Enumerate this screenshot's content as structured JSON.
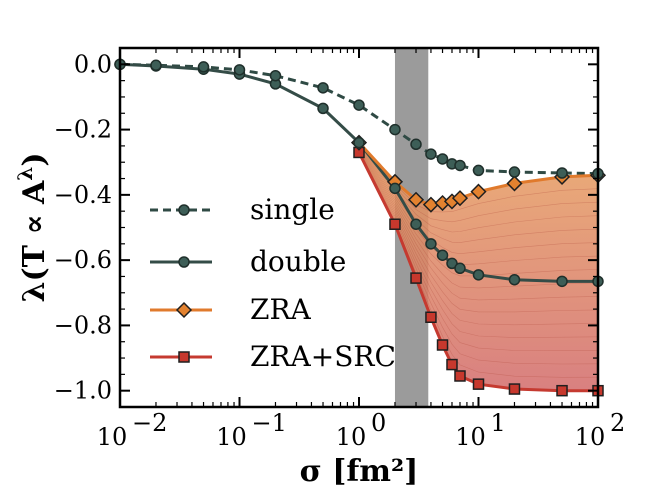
{
  "chart_data": {
    "type": "line",
    "xlabel": "σ [fm²]",
    "ylabel": "λ(T ∝ A^λ)",
    "x_scale": "log",
    "xlim": [
      0.01,
      100
    ],
    "ylim": [
      -1.05,
      0.05
    ],
    "x_ticks": [
      {
        "value": 0.01,
        "label": "10",
        "exp": "−2"
      },
      {
        "value": 0.1,
        "label": "10",
        "exp": "−1"
      },
      {
        "value": 1,
        "label": "10",
        "exp": "0"
      },
      {
        "value": 10,
        "label": "10",
        "exp": "1"
      },
      {
        "value": 100,
        "label": "10",
        "exp": "2"
      }
    ],
    "y_ticks": [
      {
        "value": 0.0,
        "label": "0.0"
      },
      {
        "value": -0.2,
        "label": "−0.2"
      },
      {
        "value": -0.4,
        "label": "−0.4"
      },
      {
        "value": -0.6,
        "label": "−0.6"
      },
      {
        "value": -0.8,
        "label": "−0.8"
      },
      {
        "value": -1.0,
        "label": "−1.0"
      }
    ],
    "shaded_band": {
      "x": [
        2.0,
        3.8
      ],
      "color": "#9b9b9b"
    },
    "grid": false,
    "legend_position": "center-left",
    "series": [
      {
        "name": "single",
        "color": "#2f4a44",
        "line_style": "dashed",
        "marker": "circle",
        "marker_fill": "#3d5e57",
        "x": [
          0.01,
          0.02,
          0.05,
          0.1,
          0.2,
          0.5,
          1.0,
          2.0,
          3.0,
          4.0,
          5.0,
          6.0,
          7.0,
          10.0,
          20.0,
          50.0,
          100.0
        ],
        "y": [
          0.0,
          -0.003,
          -0.008,
          -0.017,
          -0.035,
          -0.072,
          -0.125,
          -0.2,
          -0.245,
          -0.275,
          -0.29,
          -0.305,
          -0.31,
          -0.325,
          -0.33,
          -0.333,
          -0.335
        ]
      },
      {
        "name": "double",
        "color": "#344c47",
        "line_style": "solid",
        "marker": "circle",
        "marker_fill": "#3d5e57",
        "x": [
          0.01,
          0.02,
          0.05,
          0.1,
          0.2,
          0.5,
          1.0,
          2.0,
          3.0,
          4.0,
          5.0,
          6.0,
          7.0,
          10.0,
          20.0,
          50.0,
          100.0
        ],
        "y": [
          0.0,
          -0.005,
          -0.015,
          -0.03,
          -0.06,
          -0.135,
          -0.24,
          -0.38,
          -0.49,
          -0.55,
          -0.585,
          -0.61,
          -0.625,
          -0.645,
          -0.66,
          -0.665,
          -0.665
        ]
      },
      {
        "name": "ZRA",
        "color": "#e07a2c",
        "line_style": "solid",
        "marker": "diamond",
        "marker_fill": "#e3822f",
        "x": [
          1.0,
          2.0,
          3.0,
          4.0,
          5.0,
          6.0,
          7.0,
          10.0,
          20.0,
          50.0,
          100.0
        ],
        "y": [
          -0.24,
          -0.36,
          -0.415,
          -0.43,
          -0.425,
          -0.42,
          -0.41,
          -0.39,
          -0.365,
          -0.345,
          -0.34
        ]
      },
      {
        "name": "ZRA+SRC",
        "color": "#c53a30",
        "line_style": "solid",
        "marker": "square",
        "marker_fill": "#c7382d",
        "x": [
          1.0,
          2.0,
          3.0,
          4.0,
          5.0,
          6.0,
          7.0,
          10.0,
          20.0,
          50.0,
          100.0
        ],
        "y": [
          -0.27,
          -0.49,
          -0.655,
          -0.775,
          -0.86,
          -0.92,
          -0.955,
          -0.98,
          -0.995,
          -1.0,
          -1.0
        ]
      }
    ]
  }
}
